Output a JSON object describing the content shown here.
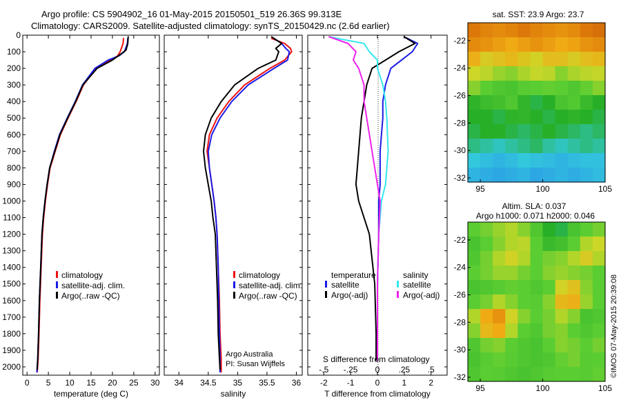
{
  "header": {
    "line1": "Argo profile: CS 5904902_16 01-May-2015 20150501_519 26.36S 99.313E",
    "line2": "Climatology: CARS2009. Satellite-adjusted climatology: synTS_20150429.nc (2.6d earlier)"
  },
  "stamp": "©IMOS 07-May-2015 20:39:08",
  "colors": {
    "climatology": "#ee1111",
    "satellite": "#1a1ae6",
    "argo": "#000000",
    "sal_sat": "#33e6ee",
    "sal_argo": "#ee22ee"
  },
  "panel_temp": {
    "xlabel": "temperature (deg C)",
    "legend": [
      "climatology",
      "satellite-adj. clim.",
      "Argo(..raw -QC)"
    ]
  },
  "panel_sal": {
    "xlabel": "salinity",
    "legend": [
      "climatology",
      "satellite-adj. clim.",
      "Argo(..raw -QC)"
    ],
    "note1": "Argo Australia",
    "note2": "PI: Susan Wijffels"
  },
  "panel_diff": {
    "xlabel": "T difference from climatology",
    "top_label": "S difference from climatology",
    "legend_head_t": "temperature",
    "legend_head_s": "salinity",
    "legend_t": [
      "satellite",
      "Argo(-adj)"
    ],
    "legend_s": [
      "satellite",
      "Argo(-adj)"
    ]
  },
  "map_sst": {
    "title": "sat. SST: 23.9 Argo: 23.7"
  },
  "map_sla": {
    "title1": "Altim. SLA: 0.037",
    "title2": "Argo h1000: 0.071 h2000: 0.046"
  },
  "chart_data": [
    {
      "type": "line",
      "panel": "temperature",
      "xlabel": "temperature (deg C)",
      "ylabel": "",
      "xlim": [
        -1,
        31
      ],
      "ylim": [
        2050,
        0
      ],
      "xticks": [
        0,
        5,
        10,
        15,
        20,
        25,
        30
      ],
      "yticks": [
        0,
        100,
        200,
        300,
        400,
        500,
        600,
        700,
        800,
        900,
        1000,
        1100,
        1200,
        1300,
        1400,
        1500,
        1600,
        1700,
        1800,
        1900,
        2000
      ],
      "y_reversed": true,
      "series": [
        {
          "name": "climatology",
          "color": "#ee1111",
          "x": [
            22.6,
            22.5,
            21.8,
            21.2,
            19.5,
            16.2,
            13.2,
            11.5,
            9.6,
            7.8,
            6.6,
            5.4,
            4.8,
            4.3,
            3.9,
            3.6,
            3.3,
            3.0,
            2.8,
            2.6,
            2.4
          ],
          "y": [
            20,
            50,
            100,
            125,
            150,
            200,
            300,
            400,
            500,
            600,
            700,
            800,
            900,
            1000,
            1100,
            1200,
            1400,
            1600,
            1800,
            1950,
            2030
          ]
        },
        {
          "name": "satellite-adj. clim.",
          "color": "#1a1ae6",
          "x": [
            23.6,
            23.5,
            22.8,
            21.5,
            19.0,
            15.9,
            13.0,
            11.3,
            9.4,
            7.6,
            6.4,
            5.3,
            4.7,
            4.2,
            3.8,
            3.5,
            3.2,
            2.9,
            2.7,
            2.5,
            2.3
          ],
          "y": [
            20,
            50,
            100,
            125,
            150,
            200,
            300,
            400,
            500,
            600,
            700,
            800,
            900,
            1000,
            1100,
            1200,
            1400,
            1600,
            1800,
            1950,
            2030
          ]
        },
        {
          "name": "Argo(..raw -QC)",
          "color": "#000000",
          "x": [
            23.7,
            23.6,
            23.2,
            21.9,
            20.0,
            16.4,
            13.1,
            11.4,
            9.5,
            7.7,
            6.5,
            5.3,
            4.7,
            4.2,
            3.8,
            3.5,
            3.2,
            2.9,
            2.7,
            2.5,
            2.4
          ],
          "y": [
            10,
            50,
            90,
            115,
            150,
            200,
            300,
            400,
            500,
            600,
            700,
            800,
            900,
            1000,
            1100,
            1200,
            1400,
            1600,
            1800,
            1950,
            2015
          ]
        }
      ]
    },
    {
      "type": "line",
      "panel": "salinity",
      "xlabel": "salinity",
      "ylabel": "",
      "xlim": [
        33.75,
        36.1
      ],
      "ylim": [
        2050,
        0
      ],
      "xticks": [
        34,
        34.5,
        35,
        35.5,
        36
      ],
      "y_reversed": true,
      "series": [
        {
          "name": "climatology",
          "color": "#ee1111",
          "x": [
            35.58,
            35.8,
            35.9,
            35.92,
            35.8,
            35.55,
            35.12,
            34.85,
            34.65,
            34.52,
            34.48,
            34.52,
            34.56,
            34.6,
            34.63,
            34.65,
            34.67,
            34.69,
            34.7,
            34.72,
            34.72
          ],
          "y": [
            20,
            50,
            80,
            100,
            150,
            200,
            300,
            400,
            500,
            600,
            700,
            800,
            900,
            1000,
            1100,
            1200,
            1400,
            1600,
            1800,
            1950,
            2030
          ]
        },
        {
          "name": "satellite-adj. clim.",
          "color": "#1a1ae6",
          "x": [
            35.62,
            35.75,
            35.82,
            35.88,
            35.85,
            35.62,
            35.18,
            34.9,
            34.7,
            34.56,
            34.5,
            34.52,
            34.56,
            34.6,
            34.63,
            34.65,
            34.67,
            34.68,
            34.69,
            34.7,
            34.7
          ],
          "y": [
            20,
            50,
            80,
            100,
            150,
            200,
            300,
            400,
            500,
            600,
            700,
            800,
            900,
            1000,
            1100,
            1200,
            1400,
            1600,
            1800,
            1950,
            2030
          ]
        },
        {
          "name": "Argo(..raw -QC)",
          "color": "#000000",
          "x": [
            35.58,
            35.75,
            35.65,
            35.7,
            35.65,
            35.35,
            34.95,
            34.72,
            34.55,
            34.45,
            34.42,
            34.45,
            34.5,
            34.55,
            34.58,
            34.62,
            34.64,
            34.66,
            34.67,
            34.69,
            34.7
          ],
          "y": [
            10,
            50,
            80,
            100,
            150,
            200,
            300,
            400,
            500,
            600,
            700,
            800,
            900,
            1000,
            1100,
            1200,
            1400,
            1600,
            1800,
            1950,
            2015
          ]
        }
      ]
    },
    {
      "type": "line",
      "panel": "differences",
      "xlabel": "T difference from climatology",
      "top_xlabel": "S difference from climatology",
      "xlim": [
        -2.6,
        2.6
      ],
      "ylim": [
        2050,
        0
      ],
      "xticks": [
        -2,
        -1,
        0,
        1,
        2
      ],
      "top_xticks": [
        -0.5,
        -0.25,
        0,
        0.25,
        0.5
      ],
      "y_reversed": true,
      "legend_groups": [
        "temperature",
        "salinity"
      ],
      "series": [
        {
          "name": "satellite",
          "group": "temperature",
          "color": "#1a1ae6",
          "x": [
            1.0,
            1.5,
            1.3,
            0.9,
            0.5,
            0.3,
            0.2,
            0.2,
            0.1,
            0.1,
            0.05,
            0.05,
            0.0,
            0.0,
            0.0
          ],
          "y": [
            10,
            50,
            100,
            150,
            200,
            300,
            400,
            500,
            700,
            900,
            1000,
            1200,
            1500,
            1800,
            1960
          ]
        },
        {
          "name": "Argo(-adj)",
          "group": "temperature",
          "color": "#000000",
          "x": [
            1.0,
            1.4,
            0.8,
            0.3,
            -0.2,
            -0.4,
            -0.5,
            -0.6,
            -0.7,
            -0.8,
            -0.7,
            -0.3,
            -0.1,
            -0.05,
            -0.05
          ],
          "y": [
            10,
            50,
            100,
            150,
            200,
            300,
            400,
            500,
            700,
            900,
            1000,
            1200,
            1500,
            1800,
            1960
          ]
        },
        {
          "name": "satellite",
          "group": "salinity",
          "color": "#33e6ee",
          "x": [
            -1.8,
            -0.5,
            -0.3,
            0.0,
            0.0,
            0.2,
            0.3,
            0.35,
            0.4,
            0.3,
            0.15,
            0.05,
            0.0,
            0.0,
            0.0
          ],
          "y": [
            10,
            50,
            100,
            150,
            200,
            300,
            400,
            500,
            700,
            900,
            1000,
            1200,
            1500,
            1800,
            1960
          ]
        },
        {
          "name": "Argo(-adj)",
          "group": "salinity",
          "color": "#ee22ee",
          "x": [
            -1.8,
            -1.1,
            -0.8,
            -0.9,
            -0.7,
            -0.5,
            -0.5,
            -0.4,
            -0.2,
            0.0,
            0.1,
            0.05,
            0.0,
            0.0,
            0.0
          ],
          "y": [
            10,
            50,
            100,
            150,
            200,
            300,
            400,
            500,
            700,
            900,
            1000,
            1200,
            1500,
            1800,
            1960
          ]
        }
      ]
    },
    {
      "type": "heatmap",
      "panel": "sat. SST map",
      "title": "sat. SST: 23.9 Argo: 23.7",
      "xlim": [
        94,
        105
      ],
      "ylim": [
        -32.3,
        -20.7
      ],
      "xticks": [
        95,
        100,
        105
      ],
      "yticks": [
        -22,
        -24,
        -26,
        -28,
        -30,
        -32
      ],
      "rows_top_to_bottom": [
        [
          0.85,
          0.82,
          0.8,
          0.82,
          0.85,
          0.82,
          0.8,
          0.78,
          0.8,
          0.85,
          0.88
        ],
        [
          0.8,
          0.78,
          0.75,
          0.72,
          0.75,
          0.78,
          0.75,
          0.72,
          0.74,
          0.78,
          0.8
        ],
        [
          0.7,
          0.62,
          0.65,
          0.68,
          0.64,
          0.6,
          0.66,
          0.66,
          0.62,
          0.66,
          0.68
        ],
        [
          0.58,
          0.56,
          0.52,
          0.5,
          0.54,
          0.57,
          0.56,
          0.5,
          0.54,
          0.56,
          0.57
        ],
        [
          0.5,
          0.45,
          0.42,
          0.4,
          0.44,
          0.45,
          0.46,
          0.45,
          0.42,
          0.46,
          0.5
        ],
        [
          0.32,
          0.36,
          0.38,
          0.42,
          0.33,
          0.28,
          0.3,
          0.4,
          0.43,
          0.35,
          0.3
        ],
        [
          0.3,
          0.3,
          0.28,
          0.32,
          0.33,
          0.3,
          0.28,
          0.3,
          0.32,
          0.3,
          0.28
        ],
        [
          0.28,
          0.3,
          0.3,
          0.28,
          0.26,
          0.28,
          0.3,
          0.28,
          0.26,
          0.24,
          0.26
        ],
        [
          0.24,
          0.22,
          0.2,
          0.22,
          0.24,
          0.26,
          0.22,
          0.2,
          0.22,
          0.24,
          0.22
        ],
        [
          0.18,
          0.15,
          0.12,
          0.14,
          0.18,
          0.16,
          0.14,
          0.12,
          0.14,
          0.16,
          0.16
        ],
        [
          0.12,
          0.1,
          0.08,
          0.1,
          0.12,
          0.08,
          0.1,
          0.12,
          0.1,
          0.12,
          0.14
        ]
      ]
    },
    {
      "type": "heatmap",
      "panel": "altimetry SLA map",
      "title": "Altim. SLA: 0.037 / Argo h1000: 0.071 h2000: 0.046",
      "xlim": [
        94,
        105
      ],
      "ylim": [
        -32.3,
        -20.7
      ],
      "xticks": [
        95,
        100,
        105
      ],
      "yticks": [
        -22,
        -24,
        -26,
        -28,
        -30,
        -32
      ],
      "rows_top_to_bottom": [
        [
          0.45,
          0.48,
          0.52,
          0.55,
          0.5,
          0.42,
          0.3,
          0.28,
          0.4,
          0.45,
          0.48
        ],
        [
          0.4,
          0.45,
          0.5,
          0.55,
          0.56,
          0.45,
          0.35,
          0.38,
          0.45,
          0.55,
          0.58
        ],
        [
          0.42,
          0.48,
          0.55,
          0.6,
          0.55,
          0.45,
          0.48,
          0.5,
          0.55,
          0.62,
          0.55
        ],
        [
          0.45,
          0.48,
          0.52,
          0.52,
          0.48,
          0.45,
          0.5,
          0.52,
          0.5,
          0.48,
          0.45
        ],
        [
          0.4,
          0.42,
          0.44,
          0.46,
          0.45,
          0.42,
          0.45,
          0.6,
          0.65,
          0.5,
          0.45
        ],
        [
          0.45,
          0.48,
          0.55,
          0.5,
          0.45,
          0.44,
          0.5,
          0.68,
          0.7,
          0.52,
          0.45
        ],
        [
          0.55,
          0.72,
          0.78,
          0.6,
          0.5,
          0.45,
          0.48,
          0.55,
          0.5,
          0.4,
          0.42
        ],
        [
          0.5,
          0.68,
          0.72,
          0.55,
          0.45,
          0.42,
          0.48,
          0.5,
          0.45,
          0.42,
          0.45
        ],
        [
          0.42,
          0.48,
          0.5,
          0.45,
          0.42,
          0.4,
          0.45,
          0.5,
          0.48,
          0.45,
          0.48
        ],
        [
          0.4,
          0.44,
          0.46,
          0.44,
          0.42,
          0.4,
          0.42,
          0.46,
          0.48,
          0.44,
          0.45
        ],
        [
          0.42,
          0.45,
          0.44,
          0.42,
          0.4,
          0.42,
          0.44,
          0.45,
          0.45,
          0.44,
          0.46
        ]
      ]
    }
  ]
}
